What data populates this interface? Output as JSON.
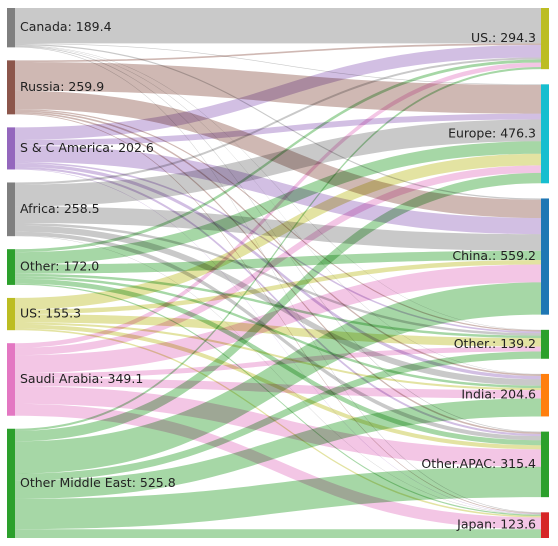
{
  "chart_data": {
    "type": "sankey",
    "sources": [
      {
        "name": "Canada",
        "label": "Canada: 189.4",
        "color": "#7f7f7f"
      },
      {
        "name": "Russia",
        "label": "Russia: 259.9",
        "color": "#8c564b"
      },
      {
        "name": "S & C America",
        "label": "S & C America: 202.6",
        "color": "#9467bd"
      },
      {
        "name": "Africa",
        "label": "Africa: 258.5",
        "color": "#7f7f7f"
      },
      {
        "name": "Other",
        "label": "Other: 172.0",
        "color": "#2ca02c"
      },
      {
        "name": "US",
        "label": "US: 155.3",
        "color": "#bcbd22"
      },
      {
        "name": "Saudi Arabia",
        "label": "Saudi Arabia: 349.1",
        "color": "#e377c2"
      },
      {
        "name": "Other Middle East",
        "label": "Other Middle East: 525.8",
        "color": "#2ca02c"
      }
    ],
    "targets": [
      {
        "name": "US.",
        "label": "US.: 294.3",
        "color": "#bcbd22"
      },
      {
        "name": "Europe",
        "label": "Europe: 476.3",
        "color": "#17becf"
      },
      {
        "name": "China.",
        "label": "China.: 559.2",
        "color": "#1f77b4"
      },
      {
        "name": "Other.",
        "label": "Other.: 139.2",
        "color": "#2ca02c"
      },
      {
        "name": "India",
        "label": "India: 204.6",
        "color": "#ff7f0e"
      },
      {
        "name": "Other.APAC",
        "label": "Other.APAC: 315.4",
        "color": "#2ca02c"
      },
      {
        "name": "Japan",
        "label": "Japan: 123.6",
        "color": "#d62728"
      }
    ],
    "links": [
      {
        "source": "Canada",
        "target": "US.",
        "value": 170.0
      },
      {
        "source": "Canada",
        "target": "Europe",
        "value": 3.0
      },
      {
        "source": "Canada",
        "target": "China.",
        "value": 6.0
      },
      {
        "source": "Canada",
        "target": "Other.",
        "value": 2.0
      },
      {
        "source": "Canada",
        "target": "India",
        "value": 2.0
      },
      {
        "source": "Canada",
        "target": "Other.APAC",
        "value": 3.4
      },
      {
        "source": "Canada",
        "target": "Japan",
        "value": 3.0
      },
      {
        "source": "Russia",
        "target": "US.",
        "value": 8.0
      },
      {
        "source": "Russia",
        "target": "Europe",
        "value": 138.0
      },
      {
        "source": "Russia",
        "target": "China.",
        "value": 88.0
      },
      {
        "source": "Russia",
        "target": "Other.",
        "value": 6.0
      },
      {
        "source": "Russia",
        "target": "India",
        "value": 8.0
      },
      {
        "source": "Russia",
        "target": "Other.APAC",
        "value": 7.9
      },
      {
        "source": "Russia",
        "target": "Japan",
        "value": 4.0
      },
      {
        "source": "S & C America",
        "target": "US.",
        "value": 60.0
      },
      {
        "source": "S & C America",
        "target": "Europe",
        "value": 28.0
      },
      {
        "source": "S & C America",
        "target": "China.",
        "value": 78.0
      },
      {
        "source": "S & C America",
        "target": "Other.",
        "value": 8.0
      },
      {
        "source": "S & C America",
        "target": "India",
        "value": 16.0
      },
      {
        "source": "S & C America",
        "target": "Other.APAC",
        "value": 10.6
      },
      {
        "source": "S & C America",
        "target": "Japan",
        "value": 2.0
      },
      {
        "source": "Africa",
        "target": "US.",
        "value": 10.0
      },
      {
        "source": "Africa",
        "target": "Europe",
        "value": 105.0
      },
      {
        "source": "Africa",
        "target": "China.",
        "value": 80.0
      },
      {
        "source": "Africa",
        "target": "Other.",
        "value": 12.0
      },
      {
        "source": "Africa",
        "target": "India",
        "value": 30.0
      },
      {
        "source": "Africa",
        "target": "Other.APAC",
        "value": 19.5
      },
      {
        "source": "Africa",
        "target": "Japan",
        "value": 2.0
      },
      {
        "source": "Other",
        "target": "US.",
        "value": 14.0
      },
      {
        "source": "Other",
        "target": "Europe",
        "value": 60.0
      },
      {
        "source": "Other",
        "target": "China.",
        "value": 44.0
      },
      {
        "source": "Other",
        "target": "Other.",
        "value": 12.0
      },
      {
        "source": "Other",
        "target": "India",
        "value": 12.0
      },
      {
        "source": "Other",
        "target": "Other.APAC",
        "value": 24.0
      },
      {
        "source": "Other",
        "target": "Japan",
        "value": 6.0
      },
      {
        "source": "US",
        "target": "US.",
        "value": 0.0
      },
      {
        "source": "US",
        "target": "Europe",
        "value": 56.0
      },
      {
        "source": "US",
        "target": "China.",
        "value": 22.0
      },
      {
        "source": "US",
        "target": "Other.",
        "value": 40.0
      },
      {
        "source": "US",
        "target": "India",
        "value": 10.0
      },
      {
        "source": "US",
        "target": "Other.APAC",
        "value": 20.0
      },
      {
        "source": "US",
        "target": "Japan",
        "value": 7.3
      },
      {
        "source": "Saudi Arabia",
        "target": "US.",
        "value": 22.0
      },
      {
        "source": "Saudi Arabia",
        "target": "Europe",
        "value": 36.0
      },
      {
        "source": "Saudi Arabia",
        "target": "China.",
        "value": 86.0
      },
      {
        "source": "Saudi Arabia",
        "target": "Other.",
        "value": 24.0
      },
      {
        "source": "Saudi Arabia",
        "target": "India",
        "value": 40.0
      },
      {
        "source": "Saudi Arabia",
        "target": "Other.APAC",
        "value": 84.0
      },
      {
        "source": "Saudi Arabia",
        "target": "Japan",
        "value": 57.1
      },
      {
        "source": "Other Middle East",
        "target": "US.",
        "value": 10.3
      },
      {
        "source": "Other Middle East",
        "target": "Europe",
        "value": 50.3
      },
      {
        "source": "Other Middle East",
        "target": "China.",
        "value": 155.2
      },
      {
        "source": "Other Middle East",
        "target": "Other.",
        "value": 35.2
      },
      {
        "source": "Other Middle East",
        "target": "India",
        "value": 86.6
      },
      {
        "source": "Other Middle East",
        "target": "Other.APAC",
        "value": 146.0
      },
      {
        "source": "Other Middle East",
        "target": "Japan",
        "value": 42.2
      }
    ]
  }
}
